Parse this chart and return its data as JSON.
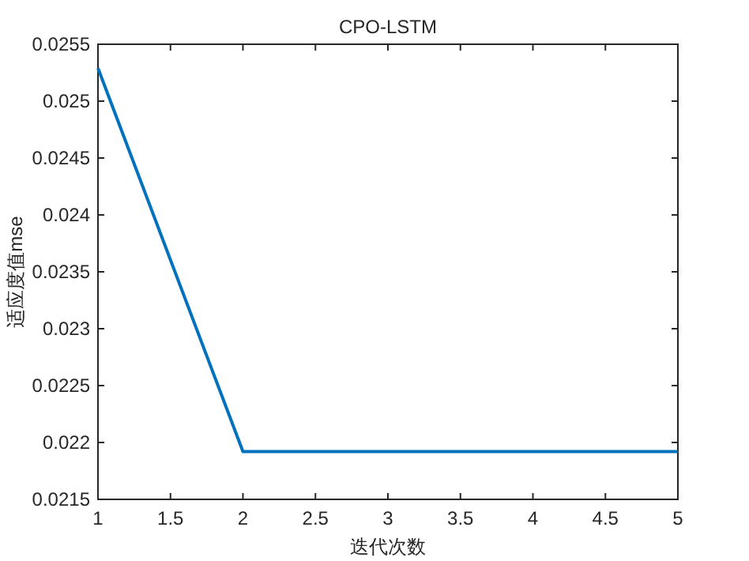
{
  "chart_data": {
    "type": "line",
    "title": "CPO-LSTM",
    "xlabel": "迭代次数",
    "ylabel": "适应度值mse",
    "x": [
      1,
      2,
      3,
      4,
      5
    ],
    "series": [
      {
        "color": "#0072bd",
        "values": [
          0.02529,
          0.02192,
          0.02192,
          0.02192,
          0.02192
        ]
      }
    ],
    "xlim": [
      1,
      5
    ],
    "xticks": [
      1,
      1.5,
      2,
      2.5,
      3,
      3.5,
      4,
      4.5,
      5
    ],
    "ylim": [
      0.0215,
      0.0255
    ],
    "yticks": [
      0.0215,
      0.022,
      0.0225,
      0.023,
      0.0235,
      0.024,
      0.0245,
      0.025,
      0.0255
    ],
    "grid": false,
    "marker": "none",
    "line_style": "solid"
  }
}
